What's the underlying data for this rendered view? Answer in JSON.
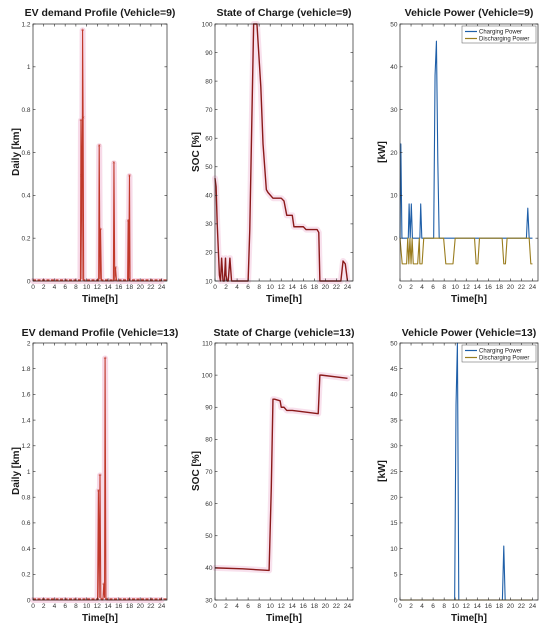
{
  "colors": {
    "demand": "#c0392b",
    "demand_fill": "#f6d3e4",
    "soc": "#8b1a1a",
    "soc_fill": "#f7dcea",
    "charging": "#1f5fa8",
    "discharging": "#9a7d1e",
    "axis": "#262626"
  },
  "chart_data": [
    {
      "id": "demand9",
      "type": "line",
      "title": "EV demand Profile (Vehicle=9)",
      "xlabel": "Time[h]",
      "ylabel": "Daily [km]",
      "xlim": [
        0,
        25
      ],
      "ylim": [
        0,
        1.2
      ],
      "xticks": [
        0,
        2,
        4,
        6,
        8,
        10,
        12,
        14,
        16,
        18,
        20,
        22,
        24
      ],
      "yticks": [
        0,
        0.2,
        0.4,
        0.6,
        0.8,
        1,
        1.2
      ],
      "ytick_labels": [
        "0",
        "0.2",
        "0.4",
        "0.6",
        "0.8",
        "1",
        "1.2"
      ],
      "series": [
        {
          "style": "demand",
          "x": [
            0,
            8.85,
            8.95,
            9.05,
            9.15,
            9.25,
            9.35,
            9.45,
            9.55,
            9.7,
            12.25,
            12.35,
            12.5,
            12.6,
            12.75,
            12.9,
            15.0,
            15.1,
            15.25,
            15.4,
            15.55,
            15.7,
            17.65,
            17.75,
            17.85,
            18.0,
            18.1,
            24
          ],
          "y": [
            0,
            0,
            0.75,
            0.49,
            0.01,
            1.17,
            0.76,
            0.01,
            0,
            0,
            0,
            0.63,
            0.01,
            0.24,
            0.01,
            0,
            0,
            0.55,
            0.01,
            0.06,
            0.01,
            0,
            0,
            0.28,
            0.01,
            0.49,
            0,
            0
          ]
        }
      ]
    },
    {
      "id": "soc9",
      "type": "line",
      "title": "State of Charge (vehicle=9)",
      "xlabel": "Time[h]",
      "ylabel": "SOC [%]",
      "xlim": [
        0,
        25
      ],
      "ylim": [
        10,
        100
      ],
      "xticks": [
        0,
        2,
        4,
        6,
        8,
        10,
        12,
        14,
        16,
        18,
        20,
        22,
        24
      ],
      "yticks": [
        10,
        20,
        30,
        40,
        50,
        60,
        70,
        80,
        90,
        100
      ],
      "ytick_labels": [
        "10",
        "20",
        "30",
        "40",
        "50",
        "60",
        "70",
        "80",
        "90",
        "100"
      ],
      "series": [
        {
          "style": "soc",
          "x": [
            0,
            0.2,
            0.4,
            0.8,
            1.0,
            1.2,
            1.45,
            1.7,
            1.9,
            2.0,
            2.2,
            2.4,
            2.7,
            3.0,
            3.2,
            3.4,
            3.6,
            4.0,
            6.0,
            6.3,
            7.0,
            7.6,
            8.3,
            8.7,
            9.3,
            9.6,
            10.5,
            12.0,
            12.5,
            13.0,
            14.0,
            14.3,
            16.0,
            16.5,
            18.5,
            18.8,
            19.0,
            22.8,
            23.2,
            23.6,
            24.0
          ],
          "y": [
            46,
            43,
            30,
            12,
            10,
            18,
            10,
            10,
            18,
            12,
            10,
            10,
            18,
            10,
            10,
            10,
            10,
            10,
            10,
            28,
            100,
            100,
            78,
            58,
            42,
            41,
            39,
            39,
            38,
            33,
            33,
            29,
            29,
            28,
            28,
            27,
            10,
            10,
            17,
            16,
            10
          ]
        }
      ]
    },
    {
      "id": "power9",
      "type": "line",
      "title": "Vehicle Power (Vehicle=9)",
      "xlabel": "Time[h]",
      "ylabel": "[kW]",
      "xlim": [
        0,
        25
      ],
      "ylim": [
        -10,
        50
      ],
      "xticks": [
        0,
        2,
        4,
        6,
        8,
        10,
        12,
        14,
        16,
        18,
        20,
        22,
        24
      ],
      "yticks": [
        0,
        10,
        20,
        30,
        40,
        50
      ],
      "ytick_labels": [
        "0",
        "10",
        "20",
        "30",
        "40",
        "50"
      ],
      "legend": [
        "Charging Power",
        "Discharging Power"
      ],
      "series": [
        {
          "name": "Charging Power",
          "style": "charging",
          "x": [
            0,
            0.15,
            0.35,
            0.55,
            1.0,
            1.5,
            1.65,
            1.85,
            2.05,
            2.25,
            2.45,
            3.6,
            3.75,
            3.95,
            6.1,
            6.35,
            6.6,
            6.85,
            7.1,
            22.9,
            23.15,
            23.4,
            24
          ],
          "y": [
            0,
            22,
            0,
            0,
            0,
            0,
            8,
            0,
            8,
            0,
            0,
            0,
            8,
            0,
            0,
            38,
            46,
            18,
            0,
            0,
            7,
            0,
            0
          ]
        },
        {
          "name": "Discharging Power",
          "style": "discharging",
          "x": [
            0,
            0.4,
            0.8,
            1.2,
            1.4,
            1.6,
            1.8,
            2.0,
            2.2,
            2.4,
            2.8,
            3.2,
            3.5,
            3.6,
            4.0,
            4.3,
            7.9,
            8.3,
            9.6,
            10.0,
            13.5,
            13.8,
            14.1,
            14.4,
            18.5,
            18.8,
            19.1,
            19.4,
            23.4,
            23.7,
            24
          ],
          "y": [
            0,
            -6,
            -6,
            -6,
            0,
            -6,
            0,
            -6,
            0,
            -6,
            -6,
            -6,
            0,
            -6,
            -6,
            0,
            0,
            -6,
            -6,
            0,
            0,
            -6,
            -6,
            0,
            0,
            -6,
            -6,
            0,
            0,
            -6,
            -6
          ]
        }
      ]
    },
    {
      "id": "demand13",
      "type": "line",
      "title": "EV demand Profile (Vehicle=13)",
      "xlabel": "Time[h]",
      "ylabel": "Daily [km]",
      "xlim": [
        0,
        25
      ],
      "ylim": [
        0,
        2
      ],
      "xticks": [
        0,
        2,
        4,
        6,
        8,
        10,
        12,
        14,
        16,
        18,
        20,
        22,
        24
      ],
      "yticks": [
        0,
        0.2,
        0.4,
        0.6,
        0.8,
        1,
        1.2,
        1.4,
        1.6,
        1.8,
        2
      ],
      "ytick_labels": [
        "0",
        "0.2",
        "0.4",
        "0.6",
        "0.8",
        "1",
        "1.2",
        "1.4",
        "1.6",
        "1.8",
        "2"
      ],
      "series": [
        {
          "style": "demand",
          "x": [
            0,
            12.05,
            12.2,
            12.35,
            12.5,
            12.65,
            12.8,
            13.05,
            13.2,
            13.35,
            13.45,
            13.6,
            13.75,
            24
          ],
          "y": [
            0,
            0,
            0.85,
            0.02,
            0.97,
            0.02,
            0,
            0,
            0.12,
            0.02,
            1.88,
            0.02,
            0,
            0
          ]
        }
      ]
    },
    {
      "id": "soc13",
      "type": "line",
      "title": "State of Charge (vehicle=13)",
      "xlabel": "Time[h]",
      "ylabel": "SOC [%]",
      "xlim": [
        0,
        25
      ],
      "ylim": [
        30,
        110
      ],
      "xticks": [
        0,
        2,
        4,
        6,
        8,
        10,
        12,
        14,
        16,
        18,
        20,
        22,
        24
      ],
      "yticks": [
        30,
        40,
        50,
        60,
        70,
        80,
        90,
        100,
        110
      ],
      "ytick_labels": [
        "30",
        "40",
        "50",
        "60",
        "70",
        "80",
        "90",
        "100",
        "110"
      ],
      "series": [
        {
          "style": "soc",
          "x": [
            0,
            5.0,
            9.8,
            10.2,
            10.5,
            10.8,
            11.8,
            12.0,
            12.5,
            13.0,
            14.0,
            18.7,
            19.0,
            19.3,
            24.0
          ],
          "y": [
            40,
            39.7,
            39.2,
            65,
            92.5,
            92.5,
            92,
            90,
            90,
            89,
            89,
            88,
            100,
            100,
            99
          ]
        }
      ]
    },
    {
      "id": "power13",
      "type": "line",
      "title": "Vehicle Power (Vehicle=13)",
      "xlabel": "Time[h]",
      "ylabel": "[kW]",
      "xlim": [
        0,
        25
      ],
      "ylim": [
        0,
        50
      ],
      "xticks": [
        0,
        2,
        4,
        6,
        8,
        10,
        12,
        14,
        16,
        18,
        20,
        22,
        24
      ],
      "yticks": [
        0,
        5,
        10,
        15,
        20,
        25,
        30,
        35,
        40,
        45,
        50
      ],
      "ytick_labels": [
        "0",
        "5",
        "10",
        "15",
        "20",
        "25",
        "30",
        "35",
        "40",
        "45",
        "50"
      ],
      "legend": [
        "Charging Power",
        "Discharging Power"
      ],
      "series": [
        {
          "name": "Charging Power",
          "style": "charging",
          "x": [
            0,
            9.9,
            10.15,
            10.4,
            10.65,
            18.55,
            18.8,
            19.05,
            24
          ],
          "y": [
            0,
            0,
            38,
            50,
            0,
            0,
            10.5,
            0,
            0
          ]
        },
        {
          "name": "Discharging Power",
          "style": "discharging",
          "x": [
            0,
            24
          ],
          "y": [
            0,
            0
          ]
        }
      ]
    }
  ]
}
